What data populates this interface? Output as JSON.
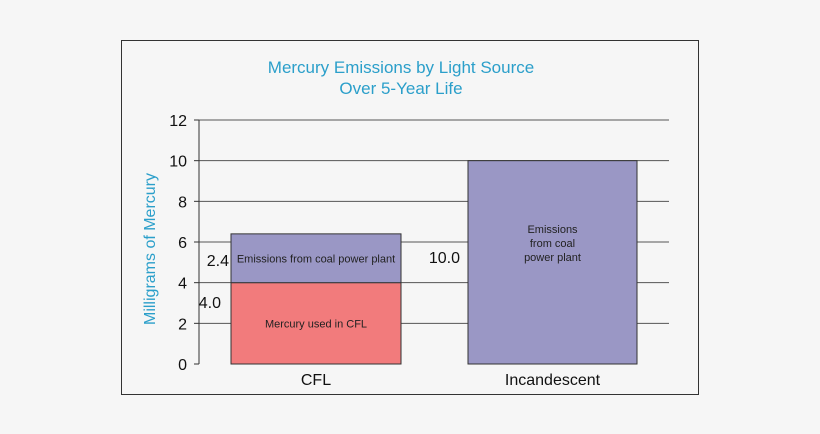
{
  "chart_data": {
    "type": "bar",
    "stacked": true,
    "title": "Mercury Emissions by Light Source",
    "subtitle": "Over 5-Year Life",
    "xlabel": "",
    "ylabel": "Milligrams of Mercury",
    "ylim": [
      0,
      12
    ],
    "yticks": [
      "0",
      "2",
      "4",
      "6",
      "8",
      "10",
      "12"
    ],
    "grid": true,
    "categories": [
      "CFL",
      "Incandescent"
    ],
    "segments": [
      {
        "category": "CFL",
        "base": 0,
        "value": 4.0,
        "label": "Mercury used in CFL",
        "value_label": "4.0",
        "color": "#f27b7c"
      },
      {
        "category": "CFL",
        "base": 4.0,
        "value": 2.4,
        "label": "Emissions from coal power plant",
        "value_label": "2.4",
        "color": "#9a97c5"
      },
      {
        "category": "Incandescent",
        "base": 0,
        "value": 10.0,
        "label": "Emissions\nfrom coal\npower plant",
        "value_label": "10.0",
        "color": "#9a97c5"
      }
    ],
    "colors": {
      "title": "#2b9fca",
      "ylabel": "#2b9fca"
    }
  }
}
